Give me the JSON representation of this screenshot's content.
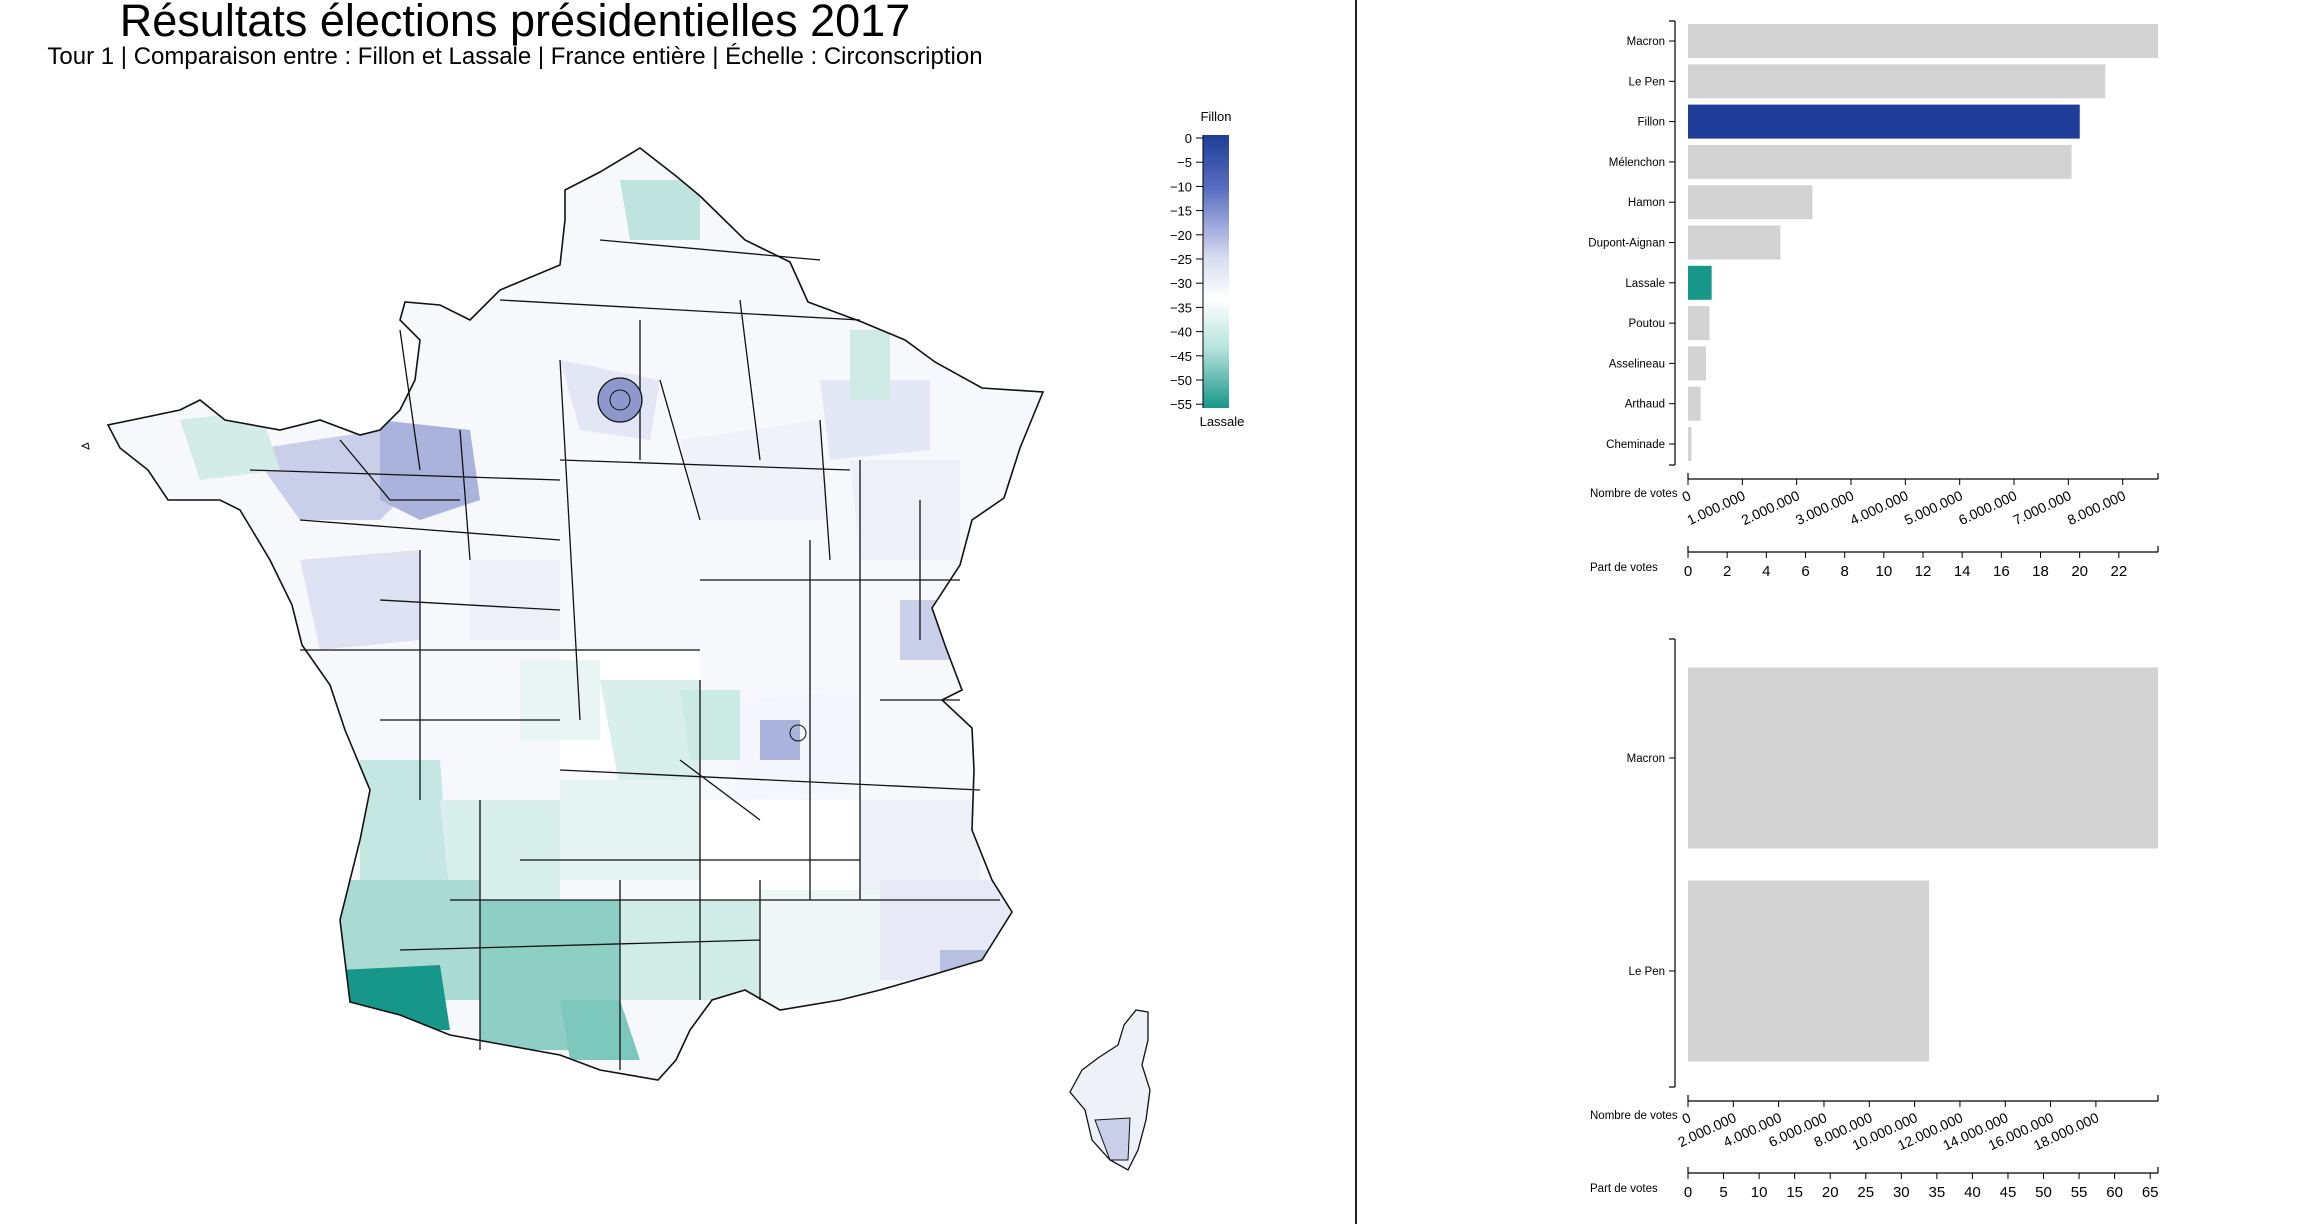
{
  "header": {
    "title": "Résultats élections présidentielles 2017",
    "subtitle": "Tour 1 | Comparaison entre : Fillon et Lassale | France entière | Échelle : Circonscription"
  },
  "legend": {
    "top_label": "Fillon",
    "bottom_label": "Lassale",
    "ticks": [
      "0",
      "−5",
      "−10",
      "−15",
      "−20",
      "−25",
      "−30",
      "−35",
      "−40",
      "−45",
      "−50",
      "−55"
    ],
    "colors": {
      "top": "#1f3d99",
      "mid": "#ffffff",
      "bottom": "#17978a"
    }
  },
  "colors": {
    "highlight_a": "#1f3d99",
    "highlight_b": "#17978a",
    "default_bar": "#d3d3d3"
  },
  "chart_data": [
    {
      "type": "bar",
      "orientation": "horizontal",
      "categories": [
        "Macron",
        "Le Pen",
        "Fillon",
        "Mélenchon",
        "Hamon",
        "Dupont-Aignan",
        "Lassale",
        "Poutou",
        "Asselineau",
        "Arthaud",
        "Cheminade"
      ],
      "values": [
        8650000,
        7680000,
        7210000,
        7060000,
        2290000,
        1700000,
        435000,
        395000,
        332000,
        232000,
        65000
      ],
      "highlight": {
        "Fillon": "#1f3d99",
        "Lassale": "#17978a"
      },
      "xlabel": "Nombre de votes",
      "xlim": [
        0,
        8650000
      ],
      "x_ticks": [
        "0",
        "1.000.000",
        "2.000.000",
        "3.000.000",
        "4.000.000",
        "5.000.000",
        "6.000.000",
        "7.000.000",
        "8.000.000"
      ],
      "x2label": "Part de votes",
      "x2_ticks": [
        "0",
        "2",
        "4",
        "6",
        "8",
        "10",
        "12",
        "14",
        "16",
        "18",
        "20",
        "22"
      ],
      "x2lim": [
        0,
        24
      ]
    },
    {
      "type": "bar",
      "orientation": "horizontal",
      "categories": [
        "Macron",
        "Le Pen"
      ],
      "values": [
        20740000,
        10640000
      ],
      "xlabel": "Nombre de votes",
      "xlim": [
        0,
        20740000
      ],
      "x_ticks": [
        "0",
        "2.000.000",
        "4.000.000",
        "6.000.000",
        "8.000.000",
        "10.000.000",
        "12.000.000",
        "14.000.000",
        "16.000.000",
        "18.000.000"
      ],
      "x2label": "Part de votes",
      "x2_ticks": [
        "0",
        "5",
        "10",
        "15",
        "20",
        "25",
        "30",
        "35",
        "40",
        "45",
        "50",
        "55",
        "60",
        "65"
      ],
      "x2lim": [
        0,
        66.1
      ]
    }
  ]
}
